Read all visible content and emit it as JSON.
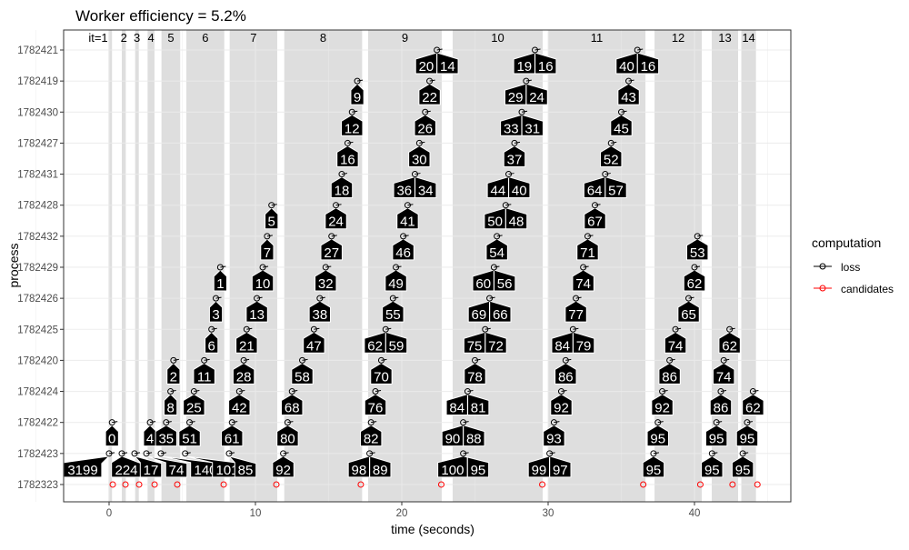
{
  "chart_data": {
    "type": "scatter",
    "title": "Worker efficiency = 5.2%",
    "xlabel": "time (seconds)",
    "ylabel": "process",
    "xlim": [
      -3,
      46.7
    ],
    "x_ticks": [
      0,
      10,
      20,
      30,
      40
    ],
    "rows": [
      "1782421",
      "1782419",
      "1782430",
      "1782427",
      "1782431",
      "1782428",
      "1782432",
      "1782429",
      "1782426",
      "1782425",
      "1782420",
      "1782424",
      "1782422",
      "1782423",
      "1782323"
    ],
    "iterations": [
      {
        "label": "it=1",
        "start": -0.04,
        "end": 0.2
      },
      {
        "label": "2",
        "start": 0.87,
        "end": 1.14
      },
      {
        "label": "3",
        "start": 1.78,
        "end": 2.03
      },
      {
        "label": "4",
        "start": 2.63,
        "end": 3.1
      },
      {
        "label": "5",
        "start": 3.58,
        "end": 4.86
      },
      {
        "label": "6",
        "start": 5.28,
        "end": 7.87
      },
      {
        "label": "7",
        "start": 8.24,
        "end": 11.49
      },
      {
        "label": "8",
        "start": 11.97,
        "end": 17.29
      },
      {
        "label": "9",
        "start": 17.7,
        "end": 22.73
      },
      {
        "label": "10",
        "start": 23.48,
        "end": 29.63
      },
      {
        "label": "11",
        "start": 30.0,
        "end": 36.65
      },
      {
        "label": "12",
        "start": 37.27,
        "end": 40.5
      },
      {
        "label": "13",
        "start": 41.18,
        "end": 42.98
      },
      {
        "label": "14",
        "start": 43.2,
        "end": 44.2
      }
    ],
    "loss_points": [
      {
        "row": "1782421",
        "t": 22.4,
        "labels": [
          "20",
          "14"
        ]
      },
      {
        "row": "1782421",
        "t": 29.1,
        "labels": [
          "19",
          "16"
        ]
      },
      {
        "row": "1782421",
        "t": 36.1,
        "labels": [
          "40",
          "16"
        ]
      },
      {
        "row": "1782419",
        "t": 16.96,
        "labels": [
          "9"
        ]
      },
      {
        "row": "1782419",
        "t": 21.9,
        "labels": [
          "22"
        ]
      },
      {
        "row": "1782419",
        "t": 28.5,
        "labels": [
          "29",
          "24"
        ]
      },
      {
        "row": "1782419",
        "t": 35.5,
        "labels": [
          "43"
        ]
      },
      {
        "row": "1782430",
        "t": 16.6,
        "labels": [
          "12"
        ]
      },
      {
        "row": "1782430",
        "t": 21.6,
        "labels": [
          "26"
        ]
      },
      {
        "row": "1782430",
        "t": 28.2,
        "labels": [
          "33",
          "31"
        ]
      },
      {
        "row": "1782430",
        "t": 35.0,
        "labels": [
          "45"
        ]
      },
      {
        "row": "1782427",
        "t": 16.3,
        "labels": [
          "16"
        ]
      },
      {
        "row": "1782427",
        "t": 21.2,
        "labels": [
          "30"
        ]
      },
      {
        "row": "1782427",
        "t": 27.7,
        "labels": [
          "37"
        ]
      },
      {
        "row": "1782427",
        "t": 34.3,
        "labels": [
          "52"
        ]
      },
      {
        "row": "1782431",
        "t": 15.9,
        "labels": [
          "18"
        ]
      },
      {
        "row": "1782431",
        "t": 20.9,
        "labels": [
          "36",
          "34"
        ]
      },
      {
        "row": "1782431",
        "t": 27.3,
        "labels": [
          "44",
          "40"
        ]
      },
      {
        "row": "1782431",
        "t": 33.9,
        "labels": [
          "64",
          "57"
        ]
      },
      {
        "row": "1782428",
        "t": 11.1,
        "labels": [
          "5"
        ]
      },
      {
        "row": "1782428",
        "t": 15.5,
        "labels": [
          "24"
        ]
      },
      {
        "row": "1782428",
        "t": 20.4,
        "labels": [
          "41"
        ]
      },
      {
        "row": "1782428",
        "t": 27.1,
        "labels": [
          "50",
          "48"
        ]
      },
      {
        "row": "1782428",
        "t": 33.2,
        "labels": [
          "67"
        ]
      },
      {
        "row": "1782432",
        "t": 10.8,
        "labels": [
          "7"
        ]
      },
      {
        "row": "1782432",
        "t": 15.2,
        "labels": [
          "27"
        ]
      },
      {
        "row": "1782432",
        "t": 20.1,
        "labels": [
          "46"
        ]
      },
      {
        "row": "1782432",
        "t": 26.5,
        "labels": [
          "54"
        ]
      },
      {
        "row": "1782432",
        "t": 32.7,
        "labels": [
          "71"
        ]
      },
      {
        "row": "1782432",
        "t": 40.2,
        "labels": [
          "53"
        ]
      },
      {
        "row": "1782429",
        "t": 7.6,
        "labels": [
          "1"
        ]
      },
      {
        "row": "1782429",
        "t": 10.5,
        "labels": [
          "10"
        ]
      },
      {
        "row": "1782429",
        "t": 14.8,
        "labels": [
          "32"
        ]
      },
      {
        "row": "1782429",
        "t": 19.6,
        "labels": [
          "49"
        ]
      },
      {
        "row": "1782429",
        "t": 26.3,
        "labels": [
          "60",
          "56"
        ]
      },
      {
        "row": "1782429",
        "t": 32.4,
        "labels": [
          "74"
        ]
      },
      {
        "row": "1782429",
        "t": 40.0,
        "labels": [
          "62"
        ]
      },
      {
        "row": "1782426",
        "t": 7.3,
        "labels": [
          "3"
        ]
      },
      {
        "row": "1782426",
        "t": 10.1,
        "labels": [
          "13"
        ]
      },
      {
        "row": "1782426",
        "t": 14.4,
        "labels": [
          "38"
        ]
      },
      {
        "row": "1782426",
        "t": 19.4,
        "labels": [
          "55"
        ]
      },
      {
        "row": "1782426",
        "t": 26.0,
        "labels": [
          "69",
          "66"
        ]
      },
      {
        "row": "1782426",
        "t": 31.9,
        "labels": [
          "77"
        ]
      },
      {
        "row": "1782426",
        "t": 39.6,
        "labels": [
          "65"
        ]
      },
      {
        "row": "1782425",
        "t": 7.0,
        "labels": [
          "6"
        ]
      },
      {
        "row": "1782425",
        "t": 9.4,
        "labels": [
          "21"
        ]
      },
      {
        "row": "1782425",
        "t": 14.0,
        "labels": [
          "47"
        ]
      },
      {
        "row": "1782425",
        "t": 18.9,
        "labels": [
          "62",
          "59"
        ]
      },
      {
        "row": "1782425",
        "t": 25.7,
        "labels": [
          "75",
          "72"
        ]
      },
      {
        "row": "1782425",
        "t": 31.7,
        "labels": [
          "84",
          "79"
        ]
      },
      {
        "row": "1782425",
        "t": 38.7,
        "labels": [
          "74"
        ]
      },
      {
        "row": "1782425",
        "t": 42.4,
        "labels": [
          "62"
        ]
      },
      {
        "row": "1782420",
        "t": 4.4,
        "labels": [
          "2"
        ]
      },
      {
        "row": "1782420",
        "t": 6.5,
        "labels": [
          "11"
        ]
      },
      {
        "row": "1782420",
        "t": 9.2,
        "labels": [
          "28"
        ]
      },
      {
        "row": "1782420",
        "t": 13.2,
        "labels": [
          "58"
        ]
      },
      {
        "row": "1782420",
        "t": 18.6,
        "labels": [
          "70"
        ]
      },
      {
        "row": "1782420",
        "t": 25.0,
        "labels": [
          "78"
        ]
      },
      {
        "row": "1782420",
        "t": 31.2,
        "labels": [
          "86"
        ]
      },
      {
        "row": "1782420",
        "t": 38.3,
        "labels": [
          "86"
        ]
      },
      {
        "row": "1782420",
        "t": 42.0,
        "labels": [
          "74"
        ]
      },
      {
        "row": "1782424",
        "t": 4.2,
        "labels": [
          "8"
        ]
      },
      {
        "row": "1782424",
        "t": 5.8,
        "labels": [
          "25"
        ]
      },
      {
        "row": "1782424",
        "t": 8.9,
        "labels": [
          "42"
        ]
      },
      {
        "row": "1782424",
        "t": 12.5,
        "labels": [
          "68"
        ]
      },
      {
        "row": "1782424",
        "t": 18.2,
        "labels": [
          "76"
        ]
      },
      {
        "row": "1782424",
        "t": 24.5,
        "labels": [
          "84",
          "81"
        ]
      },
      {
        "row": "1782424",
        "t": 30.9,
        "labels": [
          "92"
        ]
      },
      {
        "row": "1782424",
        "t": 37.8,
        "labels": [
          "92"
        ]
      },
      {
        "row": "1782424",
        "t": 41.8,
        "labels": [
          "86"
        ]
      },
      {
        "row": "1782424",
        "t": 44.0,
        "labels": [
          "62"
        ]
      },
      {
        "row": "1782422",
        "t": 0.2,
        "labels": [
          "0"
        ]
      },
      {
        "row": "1782422",
        "t": 2.8,
        "labels": [
          "4"
        ]
      },
      {
        "row": "1782422",
        "t": 3.9,
        "labels": [
          "35"
        ]
      },
      {
        "row": "1782422",
        "t": 5.5,
        "labels": [
          "51"
        ]
      },
      {
        "row": "1782422",
        "t": 8.4,
        "labels": [
          "61"
        ]
      },
      {
        "row": "1782422",
        "t": 12.2,
        "labels": [
          "80"
        ]
      },
      {
        "row": "1782422",
        "t": 17.9,
        "labels": [
          "82"
        ]
      },
      {
        "row": "1782422",
        "t": 24.2,
        "labels": [
          "90",
          "88"
        ]
      },
      {
        "row": "1782422",
        "t": 30.4,
        "labels": [
          "93"
        ]
      },
      {
        "row": "1782422",
        "t": 37.5,
        "labels": [
          "95"
        ]
      },
      {
        "row": "1782422",
        "t": 41.5,
        "labels": [
          "95"
        ]
      },
      {
        "row": "1782422",
        "t": 43.6,
        "labels": [
          "95"
        ]
      },
      {
        "row": "1782423",
        "t": 0.0,
        "labels": [
          "3199"
        ]
      },
      {
        "row": "1782423",
        "t": 0.87,
        "labels": [
          "224"
        ]
      },
      {
        "row": "1782423",
        "t": 1.74,
        "labels": [
          "17"
        ]
      },
      {
        "row": "1782423",
        "t": 2.55,
        "labels": [
          "74"
        ]
      },
      {
        "row": "1782423",
        "t": 3.54,
        "labels": [
          "140"
        ]
      },
      {
        "row": "1782423",
        "t": 5.2,
        "labels": [
          "101"
        ]
      },
      {
        "row": "1782423",
        "t": 8.2,
        "labels": [
          "85"
        ]
      },
      {
        "row": "1782423",
        "t": 11.9,
        "labels": [
          "92"
        ]
      },
      {
        "row": "1782423",
        "t": 17.8,
        "labels": [
          "98",
          "89"
        ]
      },
      {
        "row": "1782423",
        "t": 24.2,
        "labels": [
          "100",
          "95"
        ]
      },
      {
        "row": "1782423",
        "t": 30.1,
        "labels": [
          "99",
          "97"
        ]
      },
      {
        "row": "1782423",
        "t": 37.2,
        "labels": [
          "95"
        ]
      },
      {
        "row": "1782423",
        "t": 41.2,
        "labels": [
          "95"
        ]
      },
      {
        "row": "1782423",
        "t": 43.3,
        "labels": [
          "95"
        ]
      }
    ],
    "candidate_points": {
      "row": "1782323",
      "t": [
        0.25,
        1.12,
        2.05,
        3.11,
        4.66,
        7.83,
        11.43,
        17.2,
        22.7,
        29.6,
        36.5,
        40.4,
        42.6,
        44.3
      ]
    },
    "legend": {
      "title": "computation",
      "position": "right",
      "items": [
        {
          "label": "loss",
          "color": "#000000"
        },
        {
          "label": "candidates",
          "color": "#FF0000"
        }
      ]
    },
    "colors": {
      "band": "#DEDEDE",
      "grid": "#EBEBEB",
      "tick_text": "#4D4D4D",
      "tag": "#000000"
    }
  }
}
